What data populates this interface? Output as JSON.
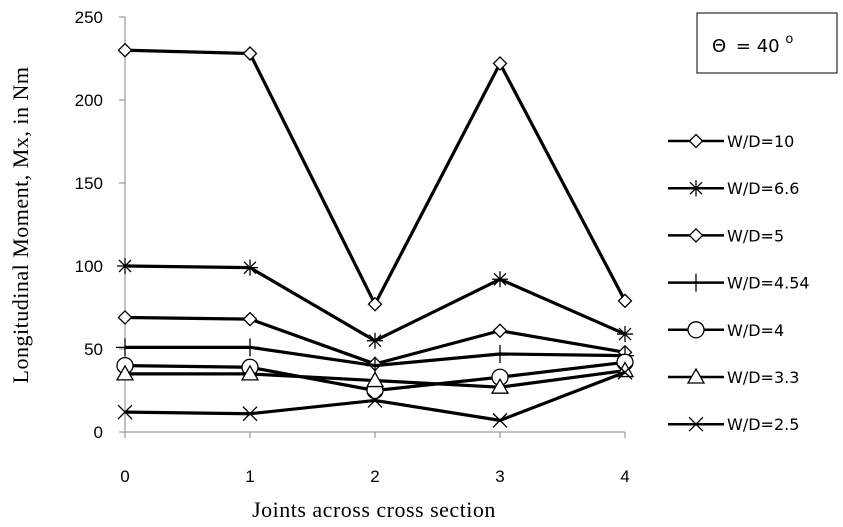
{
  "chart_data": {
    "type": "line",
    "title": "",
    "xlabel": "Joints across cross section",
    "ylabel": "Longitudinal Moment, Mx, in Nm",
    "x": [
      0,
      1,
      2,
      3,
      4
    ],
    "xlim": [
      0,
      4
    ],
    "ylim": [
      0,
      250
    ],
    "x_ticks": [
      "0",
      "1",
      "2",
      "3",
      "4"
    ],
    "y_ticks": [
      "0",
      "50",
      "100",
      "150",
      "200",
      "250"
    ],
    "grid": false,
    "legend_position": "right",
    "annotation": {
      "theta_symbol": "Θ",
      "text": "= 40",
      "superscript": "o"
    },
    "series": [
      {
        "name": "W/D=10",
        "marker": "diamond",
        "values": [
          230,
          228,
          77,
          222,
          79
        ]
      },
      {
        "name": "W/D=6.6",
        "marker": "asterisk",
        "values": [
          100,
          99,
          55,
          92,
          59
        ]
      },
      {
        "name": "W/D=5",
        "marker": "diamond",
        "values": [
          69,
          68,
          41,
          61,
          48
        ]
      },
      {
        "name": "W/D=4.54",
        "marker": "plus",
        "values": [
          51,
          51,
          40,
          47,
          46
        ]
      },
      {
        "name": "W/D=4",
        "marker": "circle",
        "values": [
          40,
          39,
          25,
          33,
          42
        ]
      },
      {
        "name": "W/D=3.3",
        "marker": "triangle",
        "values": [
          35,
          35,
          31,
          27,
          37
        ]
      },
      {
        "name": "W/D=2.5",
        "marker": "x",
        "values": [
          12,
          11,
          19,
          7,
          36
        ]
      }
    ]
  }
}
